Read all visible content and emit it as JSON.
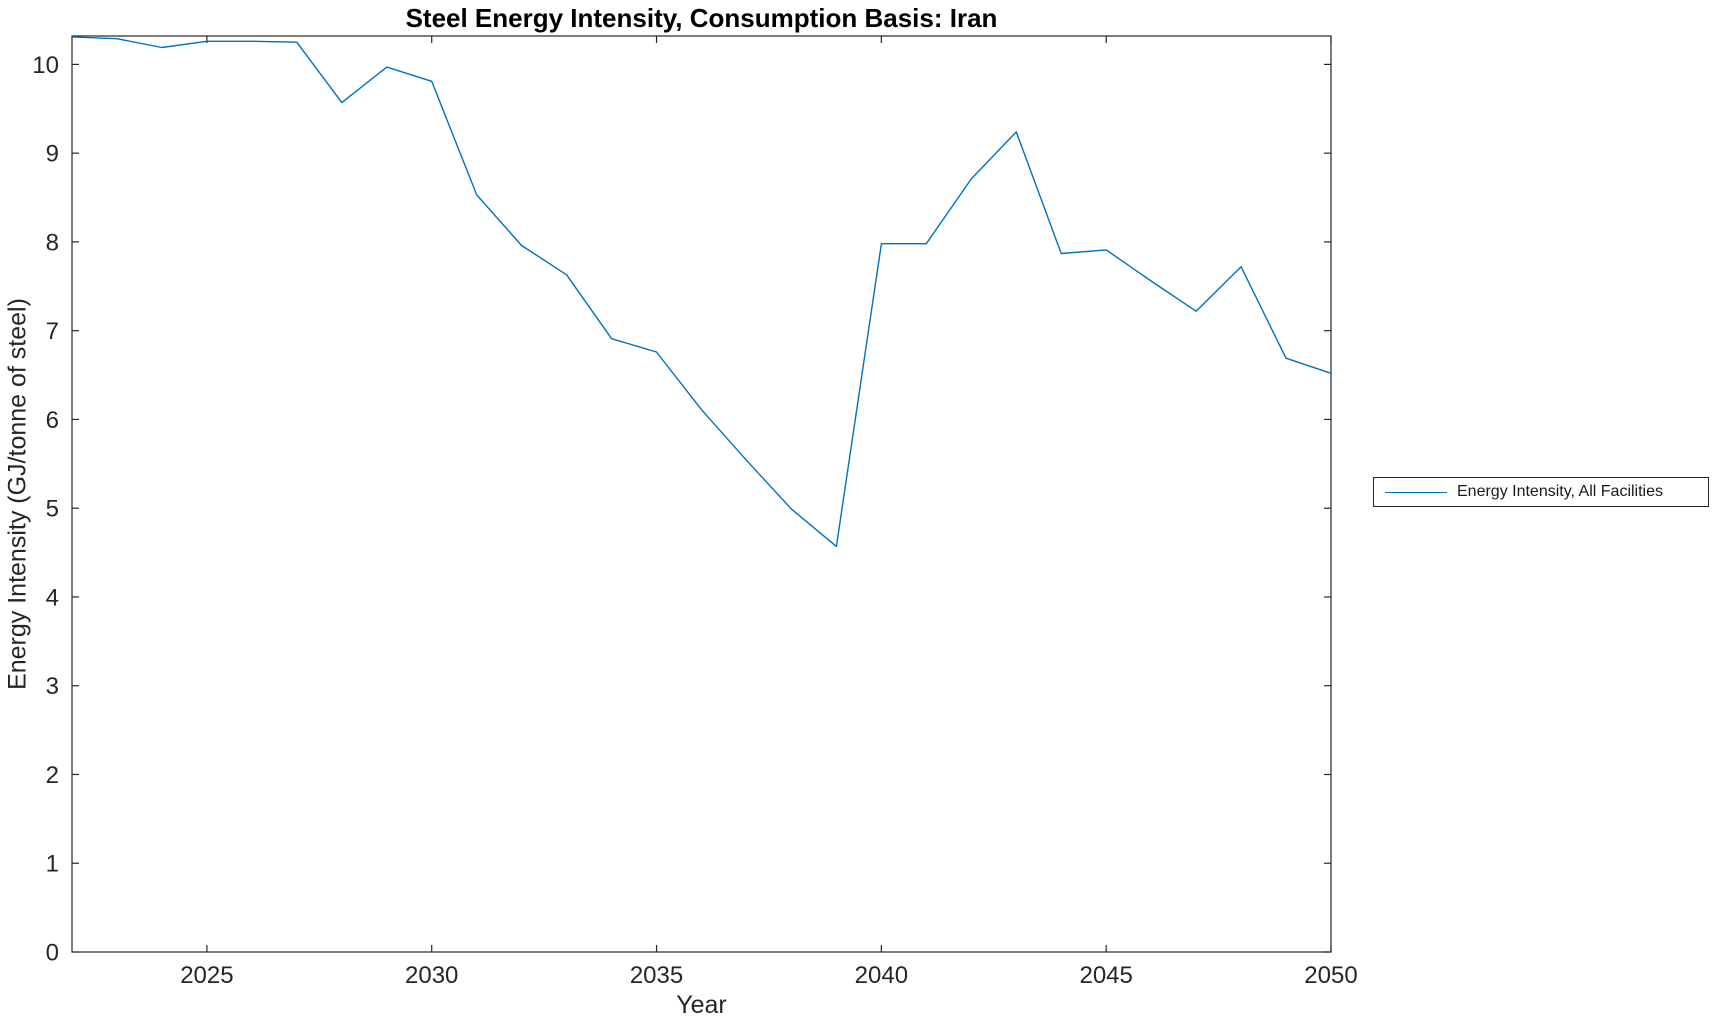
{
  "figure": {
    "background": "#ffffff"
  },
  "chart_data": {
    "type": "line",
    "title": "Steel Energy Intensity, Consumption Basis: Iran",
    "xlabel": "Year",
    "ylabel": "Energy Intensity (GJ/tonne of steel)",
    "xlim": [
      2022,
      2050
    ],
    "ylim": [
      0,
      10.32
    ],
    "xticks": [
      2025,
      2030,
      2035,
      2040,
      2045,
      2050
    ],
    "yticks": [
      0,
      1,
      2,
      3,
      4,
      5,
      6,
      7,
      8,
      9,
      10
    ],
    "grid": false,
    "axis_color": "#262626",
    "tick_label_color": "#262626",
    "legend_position": "right-outside-middle",
    "series": [
      {
        "name": "Energy Intensity, All Facilities",
        "color": "#0072BD",
        "x": [
          2022,
          2023,
          2024,
          2025,
          2026,
          2027,
          2028,
          2029,
          2030,
          2031,
          2032,
          2033,
          2034,
          2035,
          2036,
          2037,
          2038,
          2039,
          2040,
          2041,
          2042,
          2043,
          2044,
          2045,
          2046,
          2047,
          2048,
          2049,
          2050
        ],
        "y": [
          10.31,
          10.29,
          10.19,
          10.26,
          10.26,
          10.25,
          9.57,
          9.97,
          9.81,
          8.53,
          7.96,
          7.63,
          6.91,
          6.76,
          6.11,
          5.54,
          4.99,
          4.57,
          7.98,
          7.98,
          8.71,
          9.24,
          7.87,
          7.91,
          7.56,
          7.22,
          7.72,
          6.69,
          6.52
        ]
      }
    ]
  },
  "legend": {
    "entries": [
      {
        "label": "Energy Intensity, All Facilities",
        "color": "#0072BD"
      }
    ]
  }
}
